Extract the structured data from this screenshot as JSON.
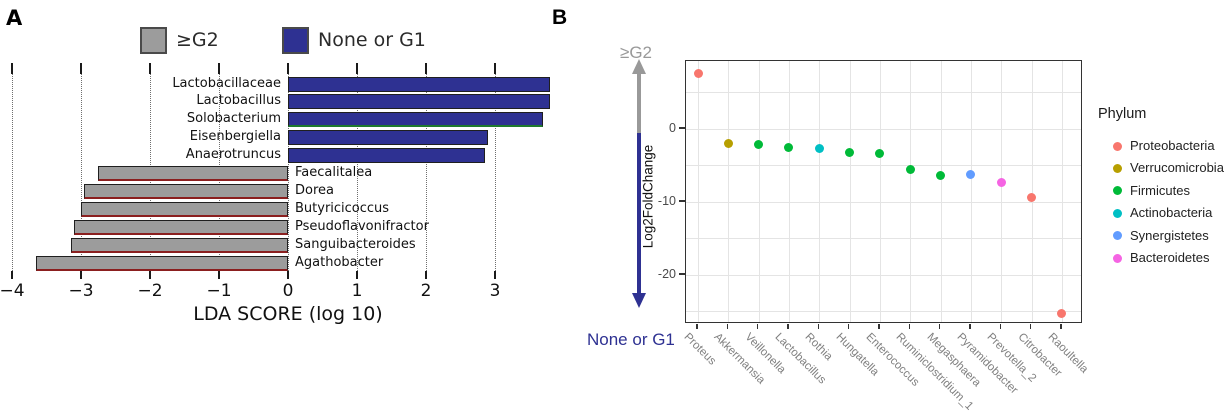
{
  "panels": {
    "a": "A",
    "b": "B"
  },
  "chart_data": [
    {
      "type": "bar",
      "panel": "A",
      "orientation": "horizontal",
      "xlabel": "LDA SCORE (log 10)",
      "xticks": [
        -4,
        -3,
        -2,
        -1,
        0,
        1,
        2,
        3
      ],
      "xtick_labels": [
        "−4",
        "−3",
        "−2",
        "−1",
        "0",
        "1",
        "2",
        "3"
      ],
      "xlim": [
        -4.05,
        3.9
      ],
      "grid": "dotted-vertical",
      "legend": [
        {
          "label": "≥G2",
          "color": "#9c9c9c"
        },
        {
          "label": "None or G1",
          "color": "#2e3192"
        }
      ],
      "bars": [
        {
          "taxon": "Lactobacillaceae",
          "lda": 3.8,
          "group": "None or G1",
          "color": "#2e3192",
          "edge": null
        },
        {
          "taxon": "Lactobacillus",
          "lda": 3.8,
          "group": "None or G1",
          "color": "#2e3192",
          "edge": null
        },
        {
          "taxon": "Solobacterium",
          "lda": 3.7,
          "group": "None or G1",
          "color": "#2e3192",
          "edge": "#1f7a2e"
        },
        {
          "taxon": "Eisenbergiella",
          "lda": 2.9,
          "group": "None or G1",
          "color": "#2e3192",
          "edge": null
        },
        {
          "taxon": "Anaerotruncus",
          "lda": 2.85,
          "group": "None or G1",
          "color": "#2e3192",
          "edge": null
        },
        {
          "taxon": "Faecalitalea",
          "lda": -2.75,
          "group": "≥G2",
          "color": "#9c9c9c",
          "edge": "#8b1f1f"
        },
        {
          "taxon": "Dorea",
          "lda": -2.95,
          "group": "≥G2",
          "color": "#9c9c9c",
          "edge": "#8b1f1f"
        },
        {
          "taxon": "Butyricicoccus",
          "lda": -3.0,
          "group": "≥G2",
          "color": "#9c9c9c",
          "edge": "#8b1f1f"
        },
        {
          "taxon": "Pseudoflavonifractor",
          "lda": -3.1,
          "group": "≥G2",
          "color": "#9c9c9c",
          "edge": "#8b1f1f"
        },
        {
          "taxon": "Sanguibacteroides",
          "lda": -3.15,
          "group": "≥G2",
          "color": "#9c9c9c",
          "edge": "#8b1f1f"
        },
        {
          "taxon": "Agathobacter",
          "lda": -3.65,
          "group": "≥G2",
          "color": "#9c9c9c",
          "edge": "#8b1f1f"
        }
      ]
    },
    {
      "type": "scatter",
      "panel": "B",
      "ylabel": "Log2FoldChange",
      "yticks": [
        0,
        -10,
        -20
      ],
      "ytick_labels": [
        "0",
        "-10",
        "-20"
      ],
      "ylim": [
        9.3,
        -26.7
      ],
      "grid_y": [
        5,
        0,
        -5,
        -10,
        -15,
        -20,
        -25
      ],
      "top_annotation": "≥G2",
      "bottom_annotation": "None or G1",
      "arrow_colors": {
        "up": "#999999",
        "down": "#2e3192"
      },
      "legend_title": "Phylum",
      "phyla": [
        {
          "name": "Proteobacteria",
          "color": "#F8766D"
        },
        {
          "name": "Verrucomicrobia",
          "color": "#B79F00"
        },
        {
          "name": "Firmicutes",
          "color": "#00BA38"
        },
        {
          "name": "Actinobacteria",
          "color": "#00BFC4"
        },
        {
          "name": "Synergistetes",
          "color": "#619CFF"
        },
        {
          "name": "Bacteroidetes",
          "color": "#F564E3"
        }
      ],
      "points": [
        {
          "taxon": "Proteus",
          "phylum": "Proteobacteria",
          "log2fc": 7.6
        },
        {
          "taxon": "Akkermansia",
          "phylum": "Verrucomicrobia",
          "log2fc": -2.0
        },
        {
          "taxon": "Veillonella",
          "phylum": "Firmicutes",
          "log2fc": -2.2
        },
        {
          "taxon": "Lactobacillus",
          "phylum": "Firmicutes",
          "log2fc": -2.5
        },
        {
          "taxon": "Rothia",
          "phylum": "Actinobacteria",
          "log2fc": -2.7
        },
        {
          "taxon": "Hungatella",
          "phylum": "Firmicutes",
          "log2fc": -3.3
        },
        {
          "taxon": "Enterococcus",
          "phylum": "Firmicutes",
          "log2fc": -3.4
        },
        {
          "taxon": "Ruminiclostridium_1",
          "phylum": "Firmicutes",
          "log2fc": -5.5
        },
        {
          "taxon": "Megasphaera",
          "phylum": "Firmicutes",
          "log2fc": -6.4
        },
        {
          "taxon": "Pyramidobacter",
          "phylum": "Synergistetes",
          "log2fc": -6.3
        },
        {
          "taxon": "Prevotella_2",
          "phylum": "Bacteroidetes",
          "log2fc": -7.3
        },
        {
          "taxon": "Citrobacter",
          "phylum": "Proteobacteria",
          "log2fc": -9.4
        },
        {
          "taxon": "Raoultella",
          "phylum": "Proteobacteria",
          "log2fc": -25.3
        }
      ]
    }
  ]
}
